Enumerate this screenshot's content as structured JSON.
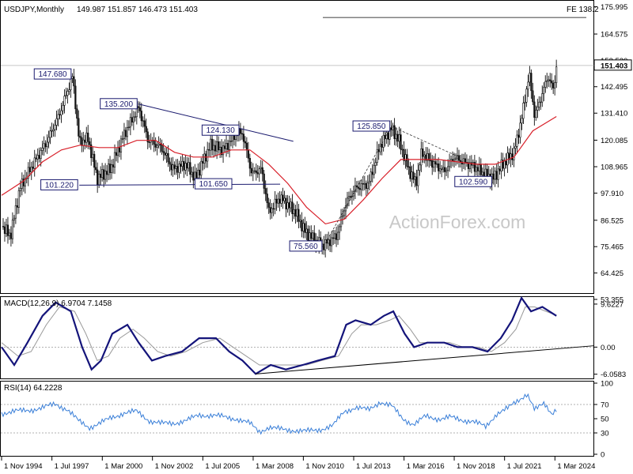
{
  "chart_data": [
    {
      "type": "candlestick",
      "title": "USDJPY,Monthly",
      "ohlc": "149.987 151.857 146.473 151.403",
      "last_price": "151.403",
      "ylim": [
        56.0,
        178.5
      ],
      "y_ticks": [
        "175.995",
        "164.575",
        "153.520",
        "142.495",
        "131.410",
        "120.085",
        "108.965",
        "97.910",
        "86.525",
        "75.465",
        "64.425",
        "53.355"
      ],
      "x_ticks": [
        "1 Nov 1994",
        "1 Jul 1997",
        "1 Mar 2000",
        "1 Nov 2002",
        "1 Jul 2005",
        "1 Mar 2008",
        "1 Nov 2010",
        "1 Jul 2013",
        "1 Mar 2016",
        "1 Nov 2018",
        "1 Jul 2021",
        "1 Mar 2024"
      ],
      "x_tick_years": [
        1994.83,
        1997.5,
        2000.17,
        2002.83,
        2005.5,
        2008.17,
        2010.83,
        2013.5,
        2016.17,
        2018.83,
        2021.5,
        2024.17
      ],
      "x_range": [
        1994.83,
        2024.45
      ],
      "price_path": [
        [
          1994.83,
          84
        ],
        [
          1995.3,
          80
        ],
        [
          1995.8,
          100
        ],
        [
          1996.5,
          110
        ],
        [
          1997.2,
          119
        ],
        [
          1997.9,
          131
        ],
        [
          1998.6,
          147
        ],
        [
          1998.95,
          119
        ],
        [
          1999.4,
          121
        ],
        [
          1999.9,
          104
        ],
        [
          2000.6,
          108
        ],
        [
          2001.3,
          122
        ],
        [
          2002.1,
          134
        ],
        [
          2002.6,
          120
        ],
        [
          2003.3,
          117
        ],
        [
          2003.9,
          108
        ],
        [
          2004.6,
          110
        ],
        [
          2005.1,
          104
        ],
        [
          2005.9,
          118
        ],
        [
          2006.6,
          116
        ],
        [
          2007.3,
          123
        ],
        [
          2007.6,
          123
        ],
        [
          2008.1,
          106
        ],
        [
          2008.6,
          108
        ],
        [
          2009.0,
          90
        ],
        [
          2009.6,
          96
        ],
        [
          2010.4,
          90
        ],
        [
          2010.9,
          82
        ],
        [
          2011.6,
          77
        ],
        [
          2011.9,
          76
        ],
        [
          2012.6,
          80
        ],
        [
          2013.1,
          94
        ],
        [
          2013.6,
          100
        ],
        [
          2014.3,
          102
        ],
        [
          2014.9,
          118
        ],
        [
          2015.5,
          125
        ],
        [
          2015.9,
          120
        ],
        [
          2016.4,
          108
        ],
        [
          2016.8,
          102
        ],
        [
          2017.1,
          115
        ],
        [
          2017.6,
          111
        ],
        [
          2018.3,
          107
        ],
        [
          2018.8,
          113
        ],
        [
          2019.3,
          111
        ],
        [
          2019.9,
          109
        ],
        [
          2020.4,
          106
        ],
        [
          2020.9,
          104
        ],
        [
          2021.4,
          110
        ],
        [
          2022.0,
          115
        ],
        [
          2022.4,
          129
        ],
        [
          2022.8,
          148
        ],
        [
          2023.1,
          130
        ],
        [
          2023.8,
          147
        ],
        [
          2024.1,
          141
        ],
        [
          2024.25,
          151.4
        ]
      ],
      "sma": [
        [
          1994.83,
          97
        ],
        [
          1996,
          103
        ],
        [
          1997,
          111
        ],
        [
          1998,
          116
        ],
        [
          1999,
          118
        ],
        [
          2000,
          117
        ],
        [
          2001,
          117
        ],
        [
          2002,
          120
        ],
        [
          2003,
          120
        ],
        [
          2004,
          115
        ],
        [
          2005,
          113
        ],
        [
          2006,
          113
        ],
        [
          2007,
          116
        ],
        [
          2008,
          116
        ],
        [
          2009,
          110
        ],
        [
          2010,
          102
        ],
        [
          2011,
          92
        ],
        [
          2012,
          85
        ],
        [
          2013,
          87
        ],
        [
          2014,
          95
        ],
        [
          2015,
          104
        ],
        [
          2016,
          112
        ],
        [
          2017,
          112
        ],
        [
          2018,
          112
        ],
        [
          2019,
          111
        ],
        [
          2020,
          110
        ],
        [
          2021,
          110
        ],
        [
          2022,
          113
        ],
        [
          2023,
          124
        ],
        [
          2024.25,
          130
        ]
      ],
      "annotations": [
        {
          "text": "147.680",
          "year": 1998.6,
          "price": 147.68,
          "side": "left"
        },
        {
          "text": "135.200",
          "year": 2002.1,
          "price": 135.2,
          "side": "left"
        },
        {
          "text": "124.130",
          "year": 2007.5,
          "price": 124.13,
          "side": "left"
        },
        {
          "text": "125.850",
          "year": 2015.5,
          "price": 125.85,
          "side": "left"
        },
        {
          "text": "101.220",
          "year": 1998.95,
          "price": 101.22,
          "side": "left"
        },
        {
          "text": "101.650",
          "year": 2005.0,
          "price": 101.65,
          "side": "right"
        },
        {
          "text": "75.560",
          "year": 2011.9,
          "price": 75.56,
          "side": "left"
        },
        {
          "text": "102.590",
          "year": 2020.9,
          "price": 102.59,
          "side": "left"
        }
      ],
      "fe_label": "FE 138.2",
      "fe_level": 171.5,
      "resistance_line": [
        [
          2002.1,
          135.2
        ],
        [
          2010.3,
          119.6
        ]
      ],
      "support_line": [
        [
          1998.95,
          101.22
        ],
        [
          2009.6,
          101.65
        ]
      ],
      "dashed_trend": [
        [
          2011.9,
          75.56
        ],
        [
          2015.5,
          125.85
        ],
        [
          2019.1,
          113
        ]
      ],
      "watermark": "ActionForex.com"
    },
    {
      "type": "line",
      "title": "MACD(12,26,9) 6.9704 7.1458",
      "ylim": [
        -7.0,
        11.2
      ],
      "y_ticks": [
        "9.6227",
        "0.00",
        "-6.0583"
      ],
      "macd": [
        [
          1994.83,
          0
        ],
        [
          1995.5,
          -4
        ],
        [
          1996.2,
          1
        ],
        [
          1997,
          7
        ],
        [
          1997.7,
          10
        ],
        [
          1998.5,
          8
        ],
        [
          1999.1,
          0
        ],
        [
          1999.6,
          -5
        ],
        [
          2000.1,
          -3
        ],
        [
          2000.7,
          3
        ],
        [
          2001.5,
          5
        ],
        [
          2002.1,
          1
        ],
        [
          2002.8,
          -3
        ],
        [
          2003.5,
          -2
        ],
        [
          2004.4,
          -1
        ],
        [
          2005.3,
          2
        ],
        [
          2006.2,
          2
        ],
        [
          2006.9,
          -1
        ],
        [
          2007.6,
          -3
        ],
        [
          2008.3,
          -6
        ],
        [
          2009.1,
          -4
        ],
        [
          2009.9,
          -5
        ],
        [
          2010.8,
          -4
        ],
        [
          2011.6,
          -3
        ],
        [
          2012.5,
          -2
        ],
        [
          2013.1,
          5
        ],
        [
          2013.6,
          6
        ],
        [
          2014.4,
          5
        ],
        [
          2015.1,
          7
        ],
        [
          2015.6,
          8
        ],
        [
          2016.2,
          3
        ],
        [
          2016.7,
          0
        ],
        [
          2017.4,
          1
        ],
        [
          2018.3,
          1
        ],
        [
          2019.0,
          0
        ],
        [
          2019.8,
          0
        ],
        [
          2020.6,
          -1
        ],
        [
          2021.3,
          2
        ],
        [
          2021.9,
          6
        ],
        [
          2022.4,
          11
        ],
        [
          2022.9,
          8
        ],
        [
          2023.5,
          9
        ],
        [
          2024.25,
          7
        ]
      ],
      "signal": [
        [
          1994.83,
          1
        ],
        [
          1995.7,
          -2
        ],
        [
          1996.4,
          -1
        ],
        [
          1997.2,
          5
        ],
        [
          1997.9,
          9
        ],
        [
          1998.7,
          8
        ],
        [
          1999.3,
          3
        ],
        [
          1999.9,
          -3
        ],
        [
          2000.5,
          -2
        ],
        [
          2001.1,
          2
        ],
        [
          2001.8,
          4
        ],
        [
          2002.4,
          2
        ],
        [
          2003.1,
          -1
        ],
        [
          2003.8,
          -2
        ],
        [
          2004.6,
          -1
        ],
        [
          2005.5,
          1
        ],
        [
          2006.4,
          2
        ],
        [
          2007.1,
          0
        ],
        [
          2007.8,
          -2
        ],
        [
          2008.5,
          -4
        ],
        [
          2009.3,
          -4
        ],
        [
          2010.1,
          -4
        ],
        [
          2011.0,
          -4
        ],
        [
          2011.8,
          -3
        ],
        [
          2012.7,
          -2
        ],
        [
          2013.4,
          3
        ],
        [
          2013.9,
          5
        ],
        [
          2014.7,
          5
        ],
        [
          2015.4,
          6
        ],
        [
          2015.9,
          7
        ],
        [
          2016.5,
          4
        ],
        [
          2017.0,
          1
        ],
        [
          2017.7,
          1
        ],
        [
          2018.6,
          1
        ],
        [
          2019.3,
          0
        ],
        [
          2020.1,
          0
        ],
        [
          2020.8,
          -1
        ],
        [
          2021.5,
          1
        ],
        [
          2022.1,
          4
        ],
        [
          2022.6,
          9
        ],
        [
          2023.1,
          9
        ],
        [
          2023.7,
          8
        ],
        [
          2024.25,
          7.1
        ]
      ],
      "trend_line": [
        [
          2008.3,
          -6
        ],
        [
          2024.45,
          0.3
        ]
      ]
    },
    {
      "type": "line",
      "title": "RSI(14) 64.2228",
      "ylim": [
        0,
        100
      ],
      "y_ticks": [
        "100",
        "70",
        "50",
        "30",
        "0"
      ],
      "levels": [
        70,
        30
      ],
      "rsi": [
        [
          1994.83,
          58
        ],
        [
          1995.5,
          60
        ],
        [
          1996.2,
          62
        ],
        [
          1997.0,
          65
        ],
        [
          1997.7,
          71
        ],
        [
          1998.3,
          63
        ],
        [
          1998.9,
          47
        ],
        [
          1999.5,
          38
        ],
        [
          2000.1,
          44
        ],
        [
          2000.7,
          52
        ],
        [
          2001.3,
          58
        ],
        [
          2002.0,
          60
        ],
        [
          2002.7,
          47
        ],
        [
          2003.3,
          43
        ],
        [
          2004.0,
          44
        ],
        [
          2004.7,
          48
        ],
        [
          2005.3,
          55
        ],
        [
          2006.0,
          55
        ],
        [
          2006.7,
          52
        ],
        [
          2007.3,
          50
        ],
        [
          2008.0,
          43
        ],
        [
          2008.5,
          32
        ],
        [
          2009.0,
          38
        ],
        [
          2009.6,
          35
        ],
        [
          2010.3,
          34
        ],
        [
          2011.0,
          32
        ],
        [
          2011.7,
          35
        ],
        [
          2012.4,
          40
        ],
        [
          2013.0,
          60
        ],
        [
          2013.6,
          66
        ],
        [
          2014.3,
          62
        ],
        [
          2014.9,
          74
        ],
        [
          2015.5,
          68
        ],
        [
          2016.1,
          50
        ],
        [
          2016.7,
          42
        ],
        [
          2017.3,
          53
        ],
        [
          2018.0,
          50
        ],
        [
          2018.6,
          52
        ],
        [
          2019.2,
          48
        ],
        [
          2019.8,
          47
        ],
        [
          2020.5,
          38
        ],
        [
          2021.1,
          58
        ],
        [
          2021.7,
          65
        ],
        [
          2022.2,
          75
        ],
        [
          2022.7,
          86
        ],
        [
          2023.1,
          62
        ],
        [
          2023.6,
          71
        ],
        [
          2024.0,
          58
        ],
        [
          2024.25,
          64.2
        ]
      ]
    }
  ]
}
